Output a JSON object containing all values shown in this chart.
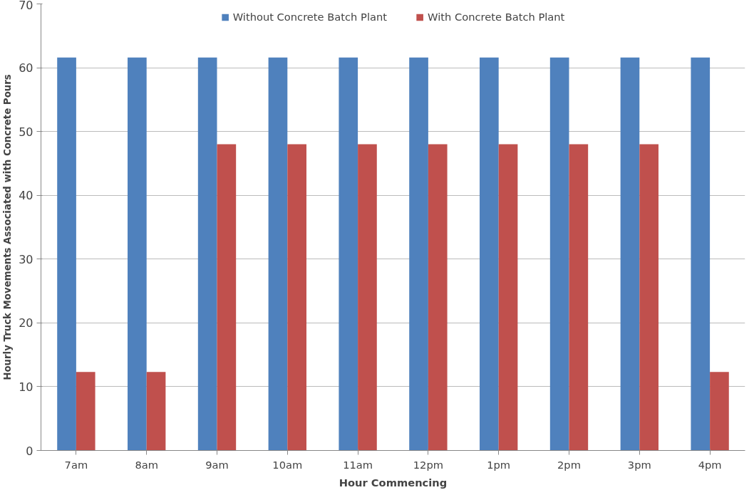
{
  "chart_data": {
    "type": "bar",
    "xlabel": "Hour Commencing",
    "ylabel": "Hourly Truck Movements Associated with Concrete Pours",
    "categories": [
      "7am",
      "8am",
      "9am",
      "10am",
      "11am",
      "12pm",
      "1pm",
      "2pm",
      "3pm",
      "4pm"
    ],
    "series": [
      {
        "name": "Without Concrete Batch Plant",
        "color": "#4f81bd",
        "values": [
          61.6,
          61.6,
          61.6,
          61.6,
          61.6,
          61.6,
          61.6,
          61.6,
          61.6,
          61.6
        ]
      },
      {
        "name": "With Concrete Batch Plant",
        "color": "#c0504d",
        "values": [
          12.3,
          12.3,
          48,
          48,
          48,
          48,
          48,
          48,
          48,
          12.3
        ]
      }
    ],
    "ylim": [
      0,
      70
    ],
    "yticks": [
      0,
      10,
      20,
      30,
      40,
      50,
      60,
      70
    ],
    "grid": "y",
    "legend": "top"
  }
}
